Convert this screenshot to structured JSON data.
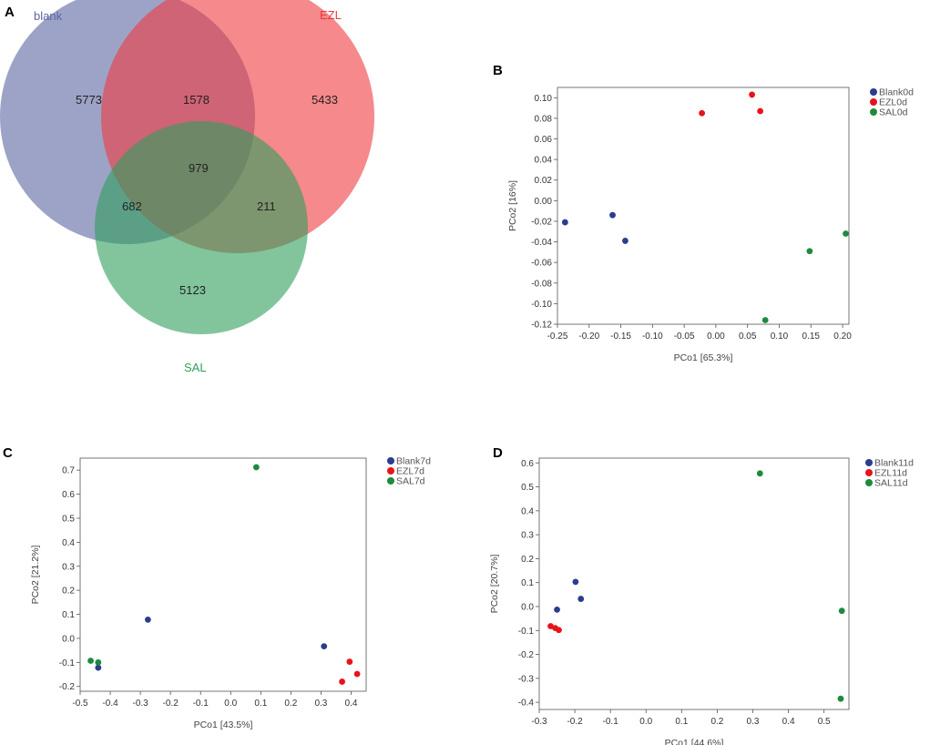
{
  "chart_data": [
    {
      "panel": "A",
      "type": "venn",
      "sets": [
        {
          "name": "blank",
          "color": "#5c66a0"
        },
        {
          "name": "EZL",
          "color": "#ee3a3f"
        },
        {
          "name": "SAL",
          "color": "#2e9e5b"
        }
      ],
      "regions": {
        "blank_only": "5773",
        "EZL_only": "5433",
        "SAL_only": "5123",
        "blank_EZL": "1578",
        "blank_SAL": "682",
        "EZL_SAL": "211",
        "all": "979"
      }
    },
    {
      "panel": "B",
      "type": "scatter",
      "xlabel": "PCo1 [65.3%]",
      "ylabel": "PCo2 [16%]",
      "xlim": [
        -0.25,
        0.21
      ],
      "ylim": [
        -0.12,
        0.11
      ],
      "xticks": [
        "-0.25",
        "-0.20",
        "-0.15",
        "-0.10",
        "-0.05",
        "0.00",
        "0.05",
        "0.10",
        "0.15",
        "0.20"
      ],
      "yticks": [
        "0.10",
        "0.08",
        "0.06",
        "0.04",
        "0.02",
        "0.00",
        "-0.02",
        "-0.04",
        "-0.06",
        "-0.08",
        "-0.10",
        "-0.12"
      ],
      "series": [
        {
          "name": "Blank0d",
          "color": "#2a3d8f",
          "points": [
            [
              -0.238,
              -0.021
            ],
            [
              -0.163,
              -0.014
            ],
            [
              -0.143,
              -0.039
            ]
          ]
        },
        {
          "name": "EZL0d",
          "color": "#e8131b",
          "points": [
            [
              -0.022,
              0.085
            ],
            [
              0.057,
              0.103
            ],
            [
              0.07,
              0.087
            ]
          ]
        },
        {
          "name": "SAL0d",
          "color": "#1e8a3c",
          "points": [
            [
              0.205,
              -0.032
            ],
            [
              0.148,
              -0.049
            ],
            [
              0.078,
              -0.116
            ]
          ]
        }
      ]
    },
    {
      "panel": "C",
      "type": "scatter",
      "xlabel": "PCo1 [43.5%]",
      "ylabel": "PCo2 [21.2%]",
      "xlim": [
        -0.5,
        0.45
      ],
      "ylim": [
        -0.22,
        0.75
      ],
      "xticks": [
        "-0.5",
        "-0.4",
        "-0.3",
        "-0.2",
        "-0.1",
        "0.0",
        "0.1",
        "0.2",
        "0.3",
        "0.4"
      ],
      "yticks": [
        "0.7",
        "0.6",
        "0.5",
        "0.4",
        "0.3",
        "0.2",
        "0.1",
        "0.0",
        "-0.1",
        "-0.2"
      ],
      "series": [
        {
          "name": "Blank7d",
          "color": "#2a3d8f",
          "points": [
            [
              -0.275,
              0.078
            ],
            [
              0.31,
              -0.033
            ],
            [
              -0.44,
              -0.122
            ]
          ]
        },
        {
          "name": "EZL7d",
          "color": "#e8131b",
          "points": [
            [
              0.395,
              -0.097
            ],
            [
              0.42,
              -0.148
            ],
            [
              0.37,
              -0.18
            ]
          ]
        },
        {
          "name": "SAL7d",
          "color": "#1e8a3c",
          "points": [
            [
              0.085,
              0.712
            ],
            [
              -0.465,
              -0.093
            ],
            [
              -0.44,
              -0.1
            ]
          ]
        }
      ]
    },
    {
      "panel": "D",
      "type": "scatter",
      "xlabel": "PCo1 [44.6%]",
      "ylabel": "PCo2 [20.7%]",
      "xlim": [
        -0.3,
        0.57
      ],
      "ylim": [
        -0.43,
        0.62
      ],
      "xticks": [
        "-0.3",
        "-0.2",
        "-0.1",
        "0.0",
        "0.1",
        "0.2",
        "0.3",
        "0.4",
        "0.5"
      ],
      "yticks": [
        "0.6",
        "0.5",
        "0.4",
        "0.3",
        "0.2",
        "0.1",
        "0.0",
        "-0.1",
        "-0.2",
        "-0.3",
        "-0.4"
      ],
      "series": [
        {
          "name": "Blank11d",
          "color": "#2a3d8f",
          "points": [
            [
              -0.198,
              0.103
            ],
            [
              -0.183,
              0.032
            ],
            [
              -0.25,
              -0.013
            ]
          ]
        },
        {
          "name": "EZL11d",
          "color": "#e8131b",
          "points": [
            [
              -0.268,
              -0.082
            ],
            [
              -0.255,
              -0.09
            ],
            [
              -0.245,
              -0.098
            ]
          ]
        },
        {
          "name": "SAL11d",
          "color": "#1e8a3c",
          "points": [
            [
              0.32,
              0.556
            ],
            [
              0.55,
              -0.018
            ],
            [
              0.547,
              -0.385
            ]
          ]
        }
      ]
    }
  ]
}
